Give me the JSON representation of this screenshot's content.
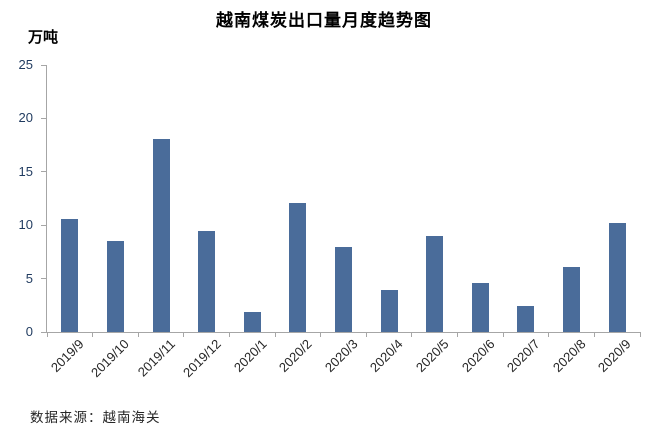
{
  "header": {
    "title": "越南煤炭出口量月度趋势图"
  },
  "footer": {
    "source_note": "数据来源：越南海关"
  },
  "chart_data": {
    "type": "bar",
    "title": "越南煤炭出口量月度趋势图",
    "xlabel": "",
    "ylabel": "万吨",
    "categories": [
      "2019/9",
      "2019/10",
      "2019/11",
      "2019/12",
      "2020/1",
      "2020/2",
      "2020/3",
      "2020/4",
      "2020/5",
      "2020/6",
      "2020/7",
      "2020/8",
      "2020/9"
    ],
    "values": [
      10.6,
      8.5,
      18.1,
      9.5,
      1.9,
      12.1,
      8.0,
      3.9,
      9.0,
      4.6,
      2.4,
      6.1,
      10.2
    ],
    "ylim": [
      0,
      25
    ],
    "yticks": [
      0,
      5,
      10,
      15,
      20,
      25
    ],
    "grid": false,
    "legend_position": "none",
    "colors": {
      "bar": "#4A6C9A",
      "axis": "#A6A6A6",
      "ytick_text": "#1F3A5F",
      "xtick_text": "#262626",
      "title_text": "#000000",
      "source_text": "#262626"
    }
  }
}
